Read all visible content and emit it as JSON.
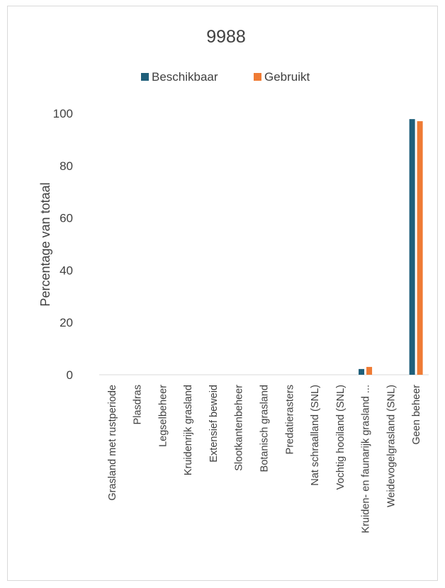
{
  "chart_data": {
    "type": "bar",
    "title": "9988",
    "ylabel": "Percentage van totaal",
    "xlabel": "",
    "ylim": [
      0,
      100
    ],
    "yticks": [
      "0",
      "20",
      "40",
      "60",
      "80",
      "100"
    ],
    "grid": false,
    "legend_position": "top",
    "categories": [
      "Grasland met rustperiode",
      "Plasdras",
      "Legselbeheer",
      "Kruidenrijk grasland",
      "Extensief beweid",
      "Slootkantenbeheer",
      "Botanisch grasland",
      "Predatierasters",
      "Nat schraalland (SNL)",
      "Vochtig hooiland (SNL)",
      "Kruiden- en faunarijk grasland ...",
      "Weidevogelgrasland (SNL)",
      "Geen beheer"
    ],
    "series": [
      {
        "name": "Beschikbaar",
        "color": "#1f5f7a",
        "values": [
          0,
          0,
          0,
          0,
          0,
          0,
          0,
          0,
          0,
          0,
          2.2,
          0,
          97.8
        ]
      },
      {
        "name": "Gebruikt",
        "color": "#ef7b34",
        "values": [
          0,
          0,
          0,
          0,
          0,
          0,
          0,
          0,
          0,
          0,
          3.0,
          0,
          97.0
        ]
      }
    ]
  }
}
